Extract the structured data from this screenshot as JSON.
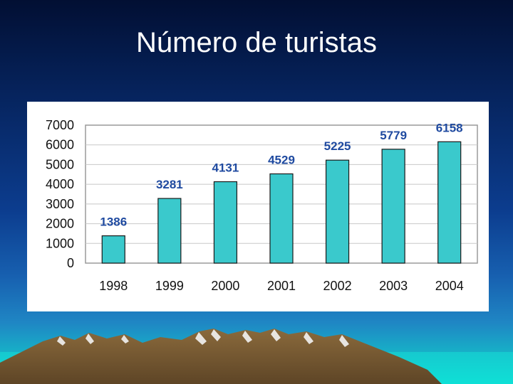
{
  "slide": {
    "title": "Número de turistas"
  },
  "colors": {
    "bar_fill": "#3ac9cc",
    "bar_stroke": "#1a1a1a",
    "value_label": "#1f4aa0",
    "grid": "#c8c8c8"
  },
  "chart_data": {
    "type": "bar",
    "title": "",
    "xlabel": "",
    "ylabel": "",
    "categories": [
      "1998",
      "1999",
      "2000",
      "2001",
      "2002",
      "2003",
      "2004"
    ],
    "values": [
      1386,
      3281,
      4131,
      4529,
      5225,
      5779,
      6158
    ],
    "data_labels": [
      "1386",
      "3281",
      "4131",
      "4529",
      "5225",
      "5779",
      "6158"
    ],
    "yticks": [
      0,
      1000,
      2000,
      3000,
      4000,
      5000,
      6000,
      7000
    ],
    "ylim": [
      0,
      7000
    ],
    "grid": true,
    "legend": "none"
  }
}
